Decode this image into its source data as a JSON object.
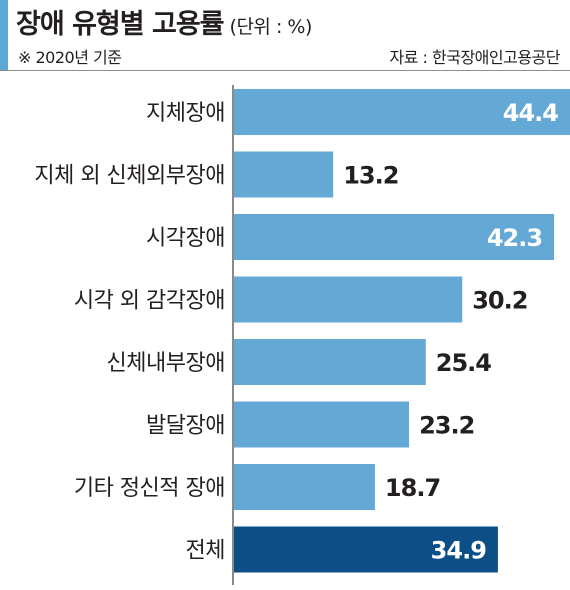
{
  "header": {
    "title": "장애 유형별 고용률",
    "unit": "(단위 : %)",
    "note": "※ 2020년 기준",
    "source": "자료 : 한국장애인고용공단"
  },
  "colors": {
    "accent": "#5ba7d6",
    "bar": "#64a9d6",
    "highlight_bar": "#0b4f86",
    "label_outside": "#231f20",
    "label_inside": "#ffffff"
  },
  "chart_data": {
    "type": "bar",
    "orientation": "horizontal",
    "categories": [
      "지체장애",
      "지체 외 신체외부장애",
      "시각장애",
      "시각 외 감각장애",
      "신체내부장애",
      "발달장애",
      "기타 정신적 장애",
      "전체"
    ],
    "values": [
      44.4,
      13.2,
      42.3,
      30.2,
      25.4,
      23.2,
      18.7,
      34.9
    ],
    "highlight": [
      "전체"
    ],
    "xlim": [
      0,
      44.4
    ],
    "grid": false,
    "legend": "none"
  }
}
